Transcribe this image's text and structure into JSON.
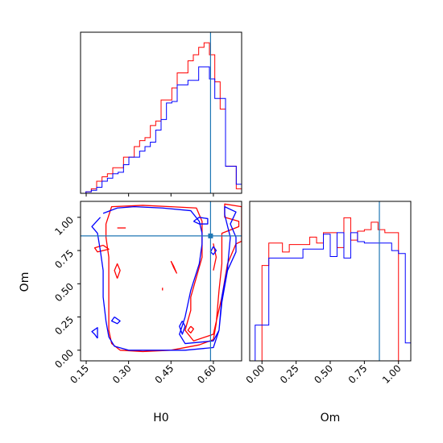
{
  "chart_data": {
    "type": "corner",
    "parameters": [
      "H0",
      "Om"
    ],
    "colors": {
      "series_a": "#ff0000",
      "series_b": "#0000ff",
      "truth": "#1f77b4"
    },
    "truth": {
      "H0": 0.59,
      "Om": 0.86
    },
    "xlim_H0": [
      0.13,
      0.7
    ],
    "xlim_Om": [
      -0.09,
      1.09
    ],
    "ylim_Om": [
      -0.08,
      1.12
    ],
    "hist_H0": {
      "edges": [
        0.13,
        0.149,
        0.168,
        0.187,
        0.206,
        0.225,
        0.244,
        0.263,
        0.282,
        0.301,
        0.32,
        0.339,
        0.358,
        0.377,
        0.396,
        0.415,
        0.434,
        0.453,
        0.472,
        0.491,
        0.51,
        0.529,
        0.548,
        0.567,
        0.586,
        0.605,
        0.624,
        0.643,
        0.662,
        0.681,
        0.7
      ],
      "series_a": [
        0.0,
        0.01,
        0.03,
        0.08,
        0.11,
        0.13,
        0.17,
        0.17,
        0.24,
        0.24,
        0.31,
        0.35,
        0.37,
        0.45,
        0.48,
        0.62,
        0.62,
        0.7,
        0.8,
        0.8,
        0.88,
        0.92,
        0.97,
        1.0,
        0.92,
        0.74,
        0.56,
        0.18,
        0.18,
        0.03
      ],
      "series_b": [
        0.0,
        0.01,
        0.02,
        0.04,
        0.08,
        0.1,
        0.13,
        0.14,
        0.19,
        0.24,
        0.24,
        0.28,
        0.31,
        0.34,
        0.42,
        0.49,
        0.6,
        0.61,
        0.72,
        0.72,
        0.75,
        0.75,
        0.84,
        0.84,
        0.76,
        0.63,
        0.63,
        0.18,
        0.18,
        0.06
      ]
    },
    "hist_Om": {
      "edges": [
        -0.09,
        -0.05,
        0.0,
        0.05,
        0.1,
        0.15,
        0.2,
        0.25,
        0.3,
        0.35,
        0.4,
        0.45,
        0.5,
        0.55,
        0.6,
        0.65,
        0.7,
        0.75,
        0.8,
        0.85,
        0.9,
        0.95,
        1.0,
        1.05,
        1.09
      ],
      "series_a": [
        0.0,
        0.0,
        0.64,
        0.79,
        0.79,
        0.73,
        0.78,
        0.78,
        0.78,
        0.83,
        0.79,
        0.86,
        0.86,
        0.76,
        0.96,
        0.81,
        0.87,
        0.88,
        0.93,
        0.88,
        0.86,
        0.86,
        0.0,
        0.0
      ],
      "series_b": [
        0.0,
        0.24,
        0.24,
        0.69,
        0.69,
        0.69,
        0.69,
        0.69,
        0.75,
        0.75,
        0.75,
        0.85,
        0.7,
        0.86,
        0.69,
        0.86,
        0.8,
        0.79,
        0.79,
        0.79,
        0.79,
        0.74,
        0.72,
        0.12
      ]
    },
    "contours_2d": {
      "series_b": [
        [
          [
            0.21,
            1.03
          ],
          [
            0.26,
            1.07
          ],
          [
            0.32,
            1.08
          ],
          [
            0.42,
            1.07
          ],
          [
            0.52,
            1.05
          ],
          [
            0.55,
            0.97
          ],
          [
            0.56,
            0.88
          ],
          [
            0.56,
            0.8
          ],
          [
            0.55,
            0.65
          ],
          [
            0.52,
            0.45
          ],
          [
            0.5,
            0.25
          ],
          [
            0.48,
            0.12
          ],
          [
            0.5,
            0.05
          ],
          [
            0.6,
            0.07
          ],
          [
            0.62,
            0.15
          ],
          [
            0.63,
            0.4
          ],
          [
            0.65,
            0.62
          ],
          [
            0.66,
            0.85
          ],
          [
            0.64,
            1.02
          ],
          [
            0.64,
            1.08
          ],
          [
            0.68,
            1.04
          ],
          [
            0.66,
            0.95
          ],
          [
            0.68,
            0.85
          ],
          [
            0.68,
            0.74
          ],
          [
            0.65,
            0.6
          ],
          [
            0.63,
            0.36
          ],
          [
            0.62,
            0.15
          ],
          [
            0.6,
            0.02
          ],
          [
            0.5,
            0.0
          ],
          [
            0.4,
            0.0
          ],
          [
            0.3,
            0.0
          ],
          [
            0.25,
            0.03
          ],
          [
            0.23,
            0.1
          ],
          [
            0.22,
            0.22
          ],
          [
            0.21,
            0.4
          ],
          [
            0.21,
            0.6
          ],
          [
            0.2,
            0.75
          ],
          [
            0.19,
            0.88
          ],
          [
            0.17,
            0.93
          ],
          [
            0.2,
            1.0
          ]
        ],
        [
          [
            0.19,
            0.09
          ],
          [
            0.18,
            0.12
          ],
          [
            0.17,
            0.14
          ],
          [
            0.19,
            0.17
          ],
          [
            0.19,
            0.09
          ]
        ],
        [
          [
            0.25,
            0.25
          ],
          [
            0.24,
            0.22
          ],
          [
            0.26,
            0.2
          ],
          [
            0.27,
            0.22
          ],
          [
            0.25,
            0.25
          ]
        ],
        [
          [
            0.53,
            0.97
          ],
          [
            0.55,
            0.95
          ],
          [
            0.58,
            0.95
          ],
          [
            0.58,
            0.99
          ],
          [
            0.55,
            1.0
          ],
          [
            0.53,
            0.97
          ]
        ],
        [
          [
            0.6,
            0.78
          ],
          [
            0.59,
            0.74
          ],
          [
            0.6,
            0.72
          ],
          [
            0.61,
            0.75
          ],
          [
            0.6,
            0.78
          ]
        ],
        [
          [
            0.49,
            0.22
          ],
          [
            0.48,
            0.18
          ],
          [
            0.49,
            0.12
          ],
          [
            0.5,
            0.18
          ],
          [
            0.49,
            0.22
          ]
        ]
      ],
      "series_a": [
        [
          [
            0.22,
            0.95
          ],
          [
            0.24,
            1.08
          ],
          [
            0.35,
            1.09
          ],
          [
            0.45,
            1.08
          ],
          [
            0.54,
            1.07
          ],
          [
            0.56,
            0.97
          ],
          [
            0.56,
            0.85
          ],
          [
            0.56,
            0.7
          ],
          [
            0.54,
            0.55
          ],
          [
            0.52,
            0.4
          ],
          [
            0.52,
            0.3
          ],
          [
            0.5,
            0.15
          ],
          [
            0.53,
            0.07
          ],
          [
            0.6,
            0.12
          ],
          [
            0.63,
            0.4
          ],
          [
            0.65,
            0.65
          ],
          [
            0.68,
            0.8
          ],
          [
            0.7,
            0.82
          ],
          [
            0.7,
            1.08
          ],
          [
            0.64,
            1.1
          ],
          [
            0.64,
            1.0
          ],
          [
            0.69,
            0.97
          ],
          [
            0.69,
            0.93
          ],
          [
            0.63,
            0.88
          ],
          [
            0.63,
            0.65
          ],
          [
            0.62,
            0.45
          ],
          [
            0.61,
            0.2
          ],
          [
            0.6,
            0.08
          ],
          [
            0.55,
            0.04
          ],
          [
            0.45,
            0.0
          ],
          [
            0.35,
            -0.01
          ],
          [
            0.27,
            0.0
          ],
          [
            0.24,
            0.05
          ],
          [
            0.23,
            0.15
          ],
          [
            0.23,
            0.3
          ],
          [
            0.23,
            0.5
          ],
          [
            0.23,
            0.7
          ],
          [
            0.22,
            0.85
          ],
          [
            0.22,
            0.95
          ]
        ],
        [
          [
            0.21,
            0.79
          ],
          [
            0.18,
            0.77
          ],
          [
            0.19,
            0.74
          ],
          [
            0.23,
            0.76
          ],
          [
            0.21,
            0.79
          ]
        ],
        [
          [
            0.26,
            0.54
          ],
          [
            0.25,
            0.6
          ],
          [
            0.26,
            0.65
          ],
          [
            0.27,
            0.6
          ],
          [
            0.26,
            0.54
          ]
        ],
        [
          [
            0.26,
            0.92
          ],
          [
            0.29,
            0.92
          ]
        ],
        [
          [
            0.45,
            0.67
          ],
          [
            0.46,
            0.62
          ],
          [
            0.47,
            0.58
          ],
          [
            0.46,
            0.63
          ],
          [
            0.45,
            0.67
          ]
        ],
        [
          [
            0.42,
            0.45
          ],
          [
            0.42,
            0.47
          ]
        ],
        [
          [
            0.52,
            0.18
          ],
          [
            0.51,
            0.15
          ],
          [
            0.52,
            0.13
          ],
          [
            0.53,
            0.16
          ],
          [
            0.52,
            0.18
          ]
        ],
        [
          [
            0.6,
            0.6
          ],
          [
            0.61,
            0.7
          ],
          [
            0.6,
            0.8
          ],
          [
            0.61,
            0.7
          ],
          [
            0.6,
            0.6
          ]
        ]
      ]
    },
    "ticks_H0": [
      0.15,
      0.3,
      0.45,
      0.6
    ],
    "tick_labels_H0": [
      "0.15",
      "0.30",
      "0.45",
      "0.60"
    ],
    "ticks_Om": [
      0.0,
      0.25,
      0.5,
      0.75,
      1.0
    ],
    "tick_labels_Om": [
      "0.00",
      "0.25",
      "0.50",
      "0.75",
      "1.00"
    ],
    "xlabel_left": "H0",
    "xlabel_right": "Om",
    "ylabel_left": "Om"
  }
}
